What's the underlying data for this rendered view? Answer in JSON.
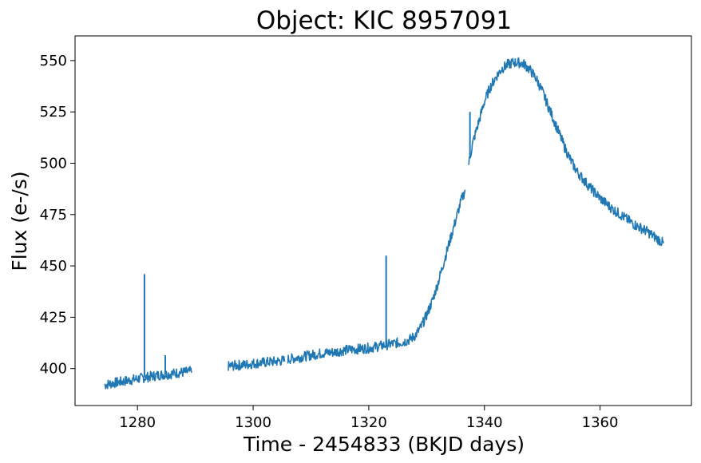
{
  "chart_data": {
    "type": "line",
    "title": "Object: KIC 8957091",
    "xlabel": "Time - 2454833 (BKJD days)",
    "ylabel": "Flux (e-/s)",
    "xlim": [
      1269.2,
      1375.8
    ],
    "ylim": [
      382,
      562
    ],
    "xticks": [
      1280,
      1300,
      1320,
      1340,
      1360
    ],
    "yticks": [
      400,
      425,
      450,
      475,
      500,
      525,
      550
    ],
    "grid": false,
    "line_color": "#1f77b4",
    "series": [
      {
        "segments": [
          {
            "x": [
              1274.3,
              1275,
              1276,
              1277,
              1278,
              1279,
              1280,
              1281,
              1282,
              1283,
              1284,
              1285,
              1286,
              1287,
              1288,
              1289,
              1289.4
            ],
            "y": [
              392,
              392.5,
              393,
              393.5,
              394,
              394.5,
              395,
              395.5,
              396,
              396.5,
              397,
              397.2,
              397.5,
              398,
              398.2,
              398.5,
              398.6
            ]
          },
          {
            "x": [
              1295.7,
              1296,
              1297,
              1298,
              1299,
              1300,
              1301,
              1302,
              1303,
              1304,
              1305.5
            ],
            "y": [
              401,
              401.2,
              401.5,
              401.8,
              402,
              402.5,
              402.7,
              403,
              403.3,
              403.5,
              404
            ]
          },
          {
            "x": [
              1306,
              1308,
              1310,
              1312,
              1314,
              1316,
              1318,
              1320,
              1322,
              1324,
              1326,
              1327,
              1328,
              1329,
              1330,
              1331,
              1332,
              1333,
              1334,
              1335,
              1336,
              1336.7
            ],
            "y": [
              404.5,
              405.5,
              406.5,
              407.5,
              408,
              409,
              409.5,
              410,
              411,
              412,
              413,
              414,
              416,
              420,
              426,
              433,
              442,
              452,
              462,
              472,
              482,
              487
            ]
          },
          {
            "x": [
              1337.3,
              1338,
              1339,
              1340,
              1341,
              1342,
              1343,
              1344,
              1345,
              1346,
              1347,
              1348,
              1349,
              1350,
              1351,
              1352,
              1353,
              1354,
              1355,
              1356,
              1358,
              1360,
              1362,
              1364,
              1366,
              1368,
              1370,
              1371
            ],
            "y": [
              500,
              510,
              520,
              530,
              537,
              542,
              546,
              548,
              549,
              549,
              548,
              545,
              541,
              535,
              528,
              521,
              514,
              507,
              501,
              496,
              489,
              483,
              478,
              474,
              470,
              467,
              463,
              461
            ]
          }
        ],
        "spikes": [
          {
            "x": 1281.2,
            "y": 446
          },
          {
            "x": 1284.8,
            "y": 406.5
          },
          {
            "x": 1323,
            "y": 455
          },
          {
            "x": 1337.5,
            "y": 525
          }
        ]
      }
    ]
  }
}
